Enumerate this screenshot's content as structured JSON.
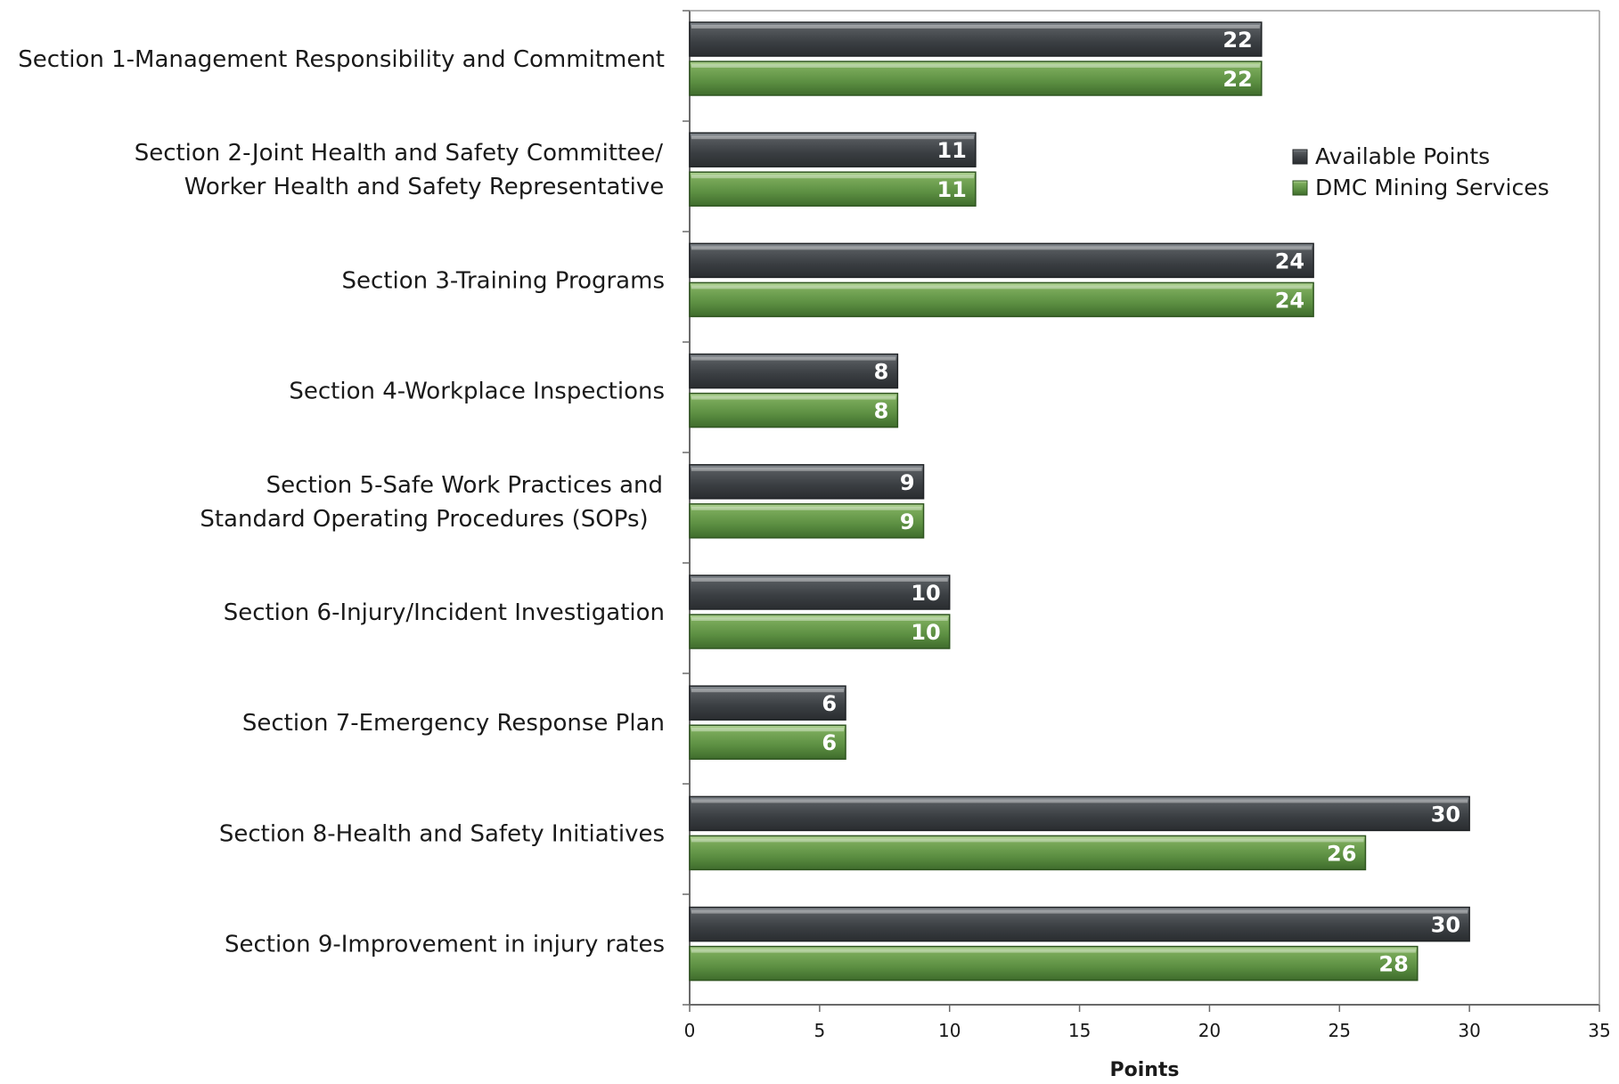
{
  "chart_data": {
    "type": "bar",
    "orientation": "horizontal",
    "title": "",
    "xlabel": "Points",
    "ylabel": "",
    "xlim": [
      0,
      35
    ],
    "x_ticks": [
      0,
      5,
      10,
      15,
      20,
      25,
      30,
      35
    ],
    "grid": false,
    "legend_position": "top-right",
    "categories": [
      [
        "Section 1-Management Responsibility and Commitment"
      ],
      [
        "Section 2-Joint Health and Safety Committee/",
        "Worker Health and Safety Representative"
      ],
      [
        "Section 3-Training Programs"
      ],
      [
        "Section 4-Workplace Inspections"
      ],
      [
        "Section 5-Safe Work Practices and",
        "Standard Operating Procedures (SOPs)"
      ],
      [
        "Section 6-Injury/Incident Investigation"
      ],
      [
        "Section 7-Emergency Response Plan"
      ],
      [
        "Section 8-Health and Safety Initiatives"
      ],
      [
        "Section 9-Improvement in injury rates"
      ]
    ],
    "series": [
      {
        "name": "Available Points",
        "color": "#3c4348",
        "values": [
          22,
          11,
          24,
          8,
          9,
          10,
          6,
          30,
          30
        ]
      },
      {
        "name": "DMC Mining Services",
        "color": "#5c8f42",
        "values": [
          22,
          11,
          24,
          8,
          9,
          10,
          6,
          26,
          28
        ]
      }
    ]
  }
}
